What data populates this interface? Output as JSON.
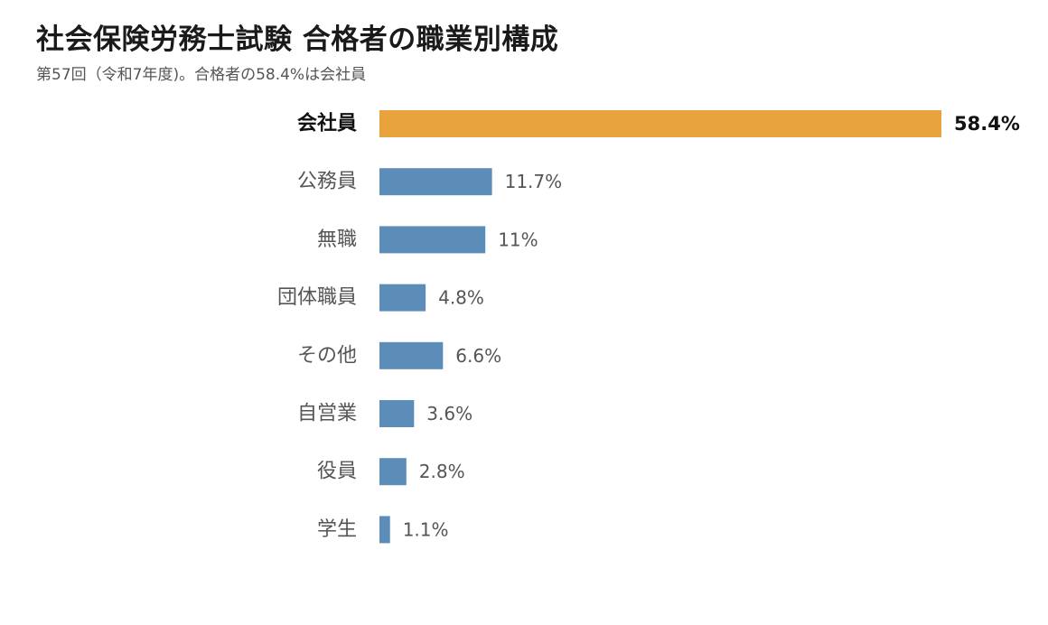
{
  "title": "社会保険労務士試験 合格者の職業別構成",
  "subtitle": "第57回（令和7年度)。合格者の58.4%は会社員",
  "colors": {
    "highlight": "#e8a33c",
    "bar": "#5b8db8"
  },
  "chart_data": {
    "type": "bar",
    "orientation": "horizontal",
    "categories": [
      "会社員",
      "公務員",
      "無職",
      "団体職員",
      "その他",
      "自営業",
      "役員",
      "学生"
    ],
    "values": [
      58.4,
      11.7,
      11,
      4.8,
      6.6,
      3.6,
      2.8,
      1.1
    ],
    "value_labels": [
      "58.4%",
      "11.7%",
      "11%",
      "4.8%",
      "6.6%",
      "3.6%",
      "2.8%",
      "1.1%"
    ],
    "highlight_category": "会社員",
    "unit": "%",
    "xlim": [
      0,
      58.4
    ],
    "grid": false,
    "legend": "none"
  }
}
